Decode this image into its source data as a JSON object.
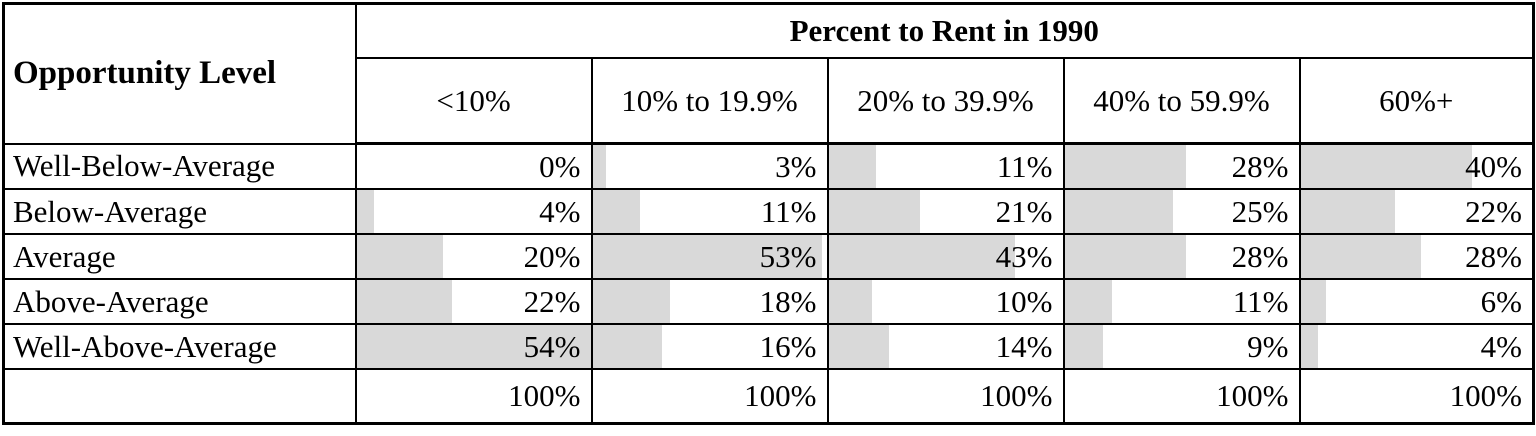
{
  "table": {
    "corner_header": "Opportunity Level",
    "group_header": "Percent to Rent in 1990",
    "columns": [
      "<10%",
      "10% to 19.9%",
      "20% to 39.9%",
      "40% to 59.9%",
      "60%+"
    ],
    "rows": [
      {
        "label": "Well-Below-Average",
        "values": [
          0,
          3,
          11,
          28,
          40
        ]
      },
      {
        "label": "Below-Average",
        "values": [
          4,
          11,
          21,
          25,
          22
        ]
      },
      {
        "label": "Average",
        "values": [
          20,
          53,
          43,
          28,
          28
        ]
      },
      {
        "label": "Above-Average",
        "values": [
          22,
          18,
          10,
          11,
          6
        ]
      },
      {
        "label": "Well-Above-Average",
        "values": [
          54,
          16,
          14,
          9,
          4
        ]
      }
    ],
    "totals": [
      "100%",
      "100%",
      "100%",
      "100%",
      "100%"
    ],
    "value_suffix": "%",
    "bar_color": "#d9d9d9",
    "bar_scale_max": 54
  },
  "chart_data": {
    "type": "table",
    "title": "Percent to Rent in 1990",
    "row_header_label": "Opportunity Level",
    "columns": [
      "<10%",
      "10% to 19.9%",
      "20% to 39.9%",
      "40% to 59.9%",
      "60%+"
    ],
    "rows": [
      "Well-Below-Average",
      "Below-Average",
      "Average",
      "Above-Average",
      "Well-Above-Average"
    ],
    "values_percent": [
      [
        0,
        3,
        11,
        28,
        40
      ],
      [
        4,
        11,
        21,
        25,
        22
      ],
      [
        20,
        53,
        43,
        28,
        28
      ],
      [
        22,
        18,
        10,
        11,
        6
      ],
      [
        54,
        16,
        14,
        9,
        4
      ]
    ],
    "column_totals_percent": [
      100,
      100,
      100,
      100,
      100
    ],
    "cell_visualization": "in-cell gray data bars, left-anchored, width proportional to value with full bar at 54%",
    "bar_color": "#d9d9d9",
    "grid": "on",
    "legend": "none"
  }
}
